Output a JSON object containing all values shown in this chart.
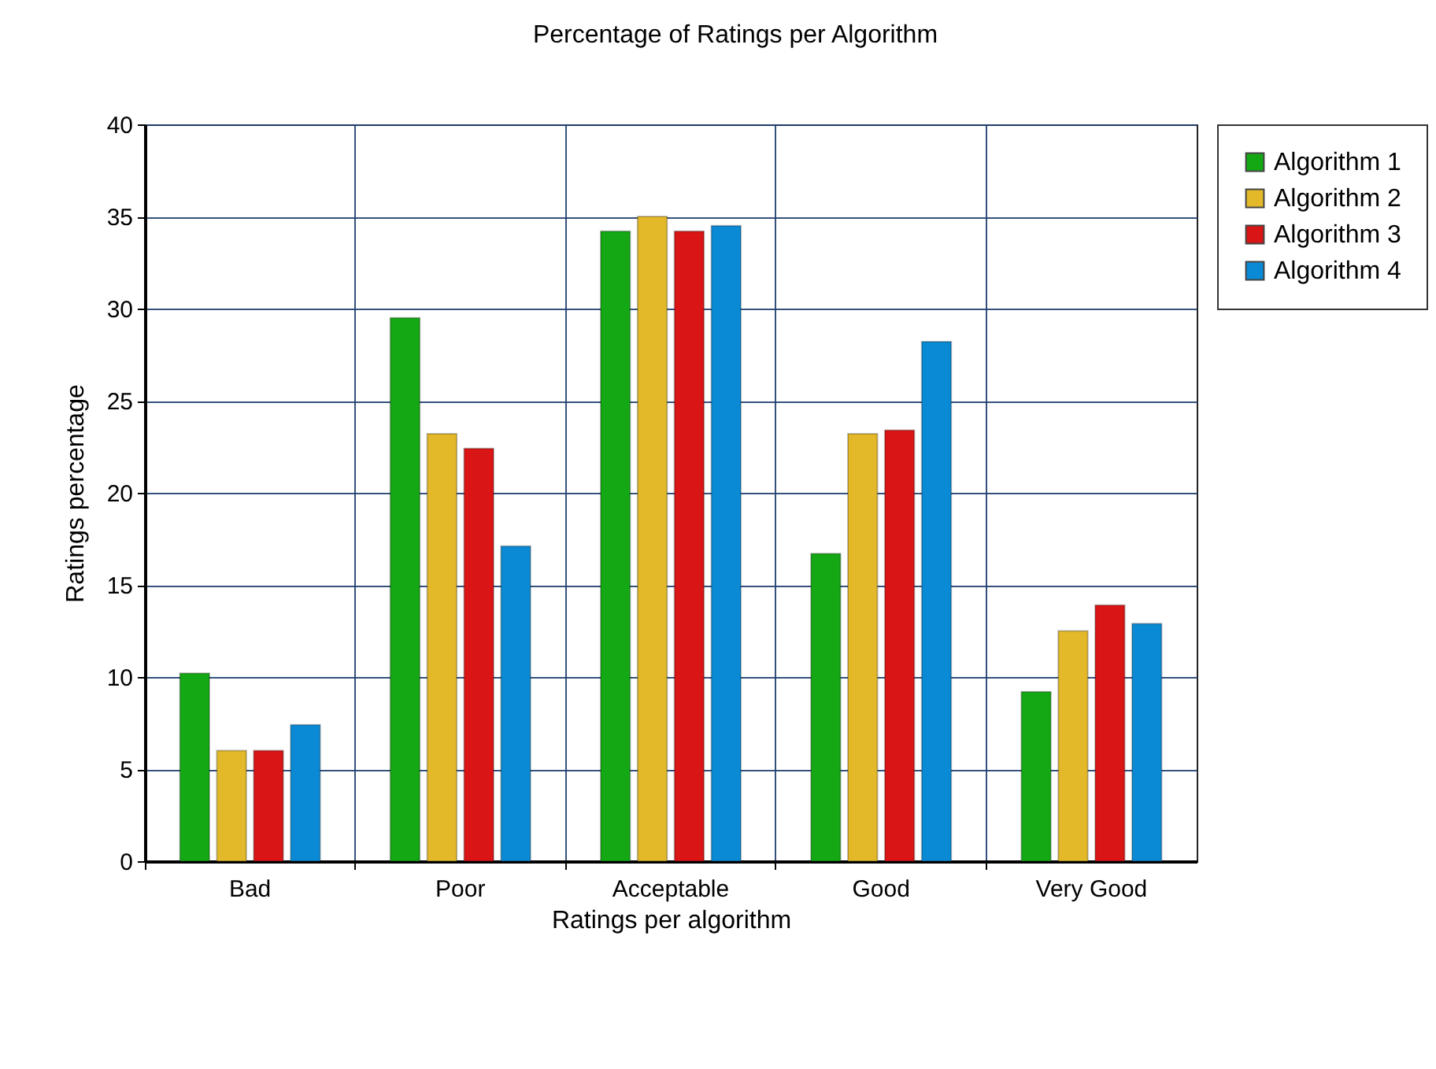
{
  "chart_data": {
    "type": "bar",
    "title": "Percentage of Ratings per Algorithm",
    "xlabel": "Ratings per algorithm",
    "ylabel": "Ratings percentage",
    "categories": [
      "Bad",
      "Poor",
      "Acceptable",
      "Good",
      "Very Good"
    ],
    "series": [
      {
        "name": "Algorithm 1",
        "color": "#14a814",
        "values": [
          10.2,
          29.5,
          34.2,
          16.7,
          9.2
        ]
      },
      {
        "name": "Algorithm 2",
        "color": "#e3b92a",
        "values": [
          6.0,
          23.2,
          35.0,
          23.2,
          12.5
        ]
      },
      {
        "name": "Algorithm 3",
        "color": "#d91515",
        "values": [
          6.0,
          22.4,
          34.2,
          23.4,
          13.9
        ]
      },
      {
        "name": "Algorithm 4",
        "color": "#0a8ad4",
        "values": [
          7.4,
          17.1,
          34.5,
          28.2,
          12.9
        ]
      }
    ],
    "ylim": [
      0,
      40
    ],
    "yticks": [
      0,
      5,
      10,
      15,
      20,
      25,
      30,
      35,
      40
    ],
    "grid": true,
    "legend": "top right"
  }
}
